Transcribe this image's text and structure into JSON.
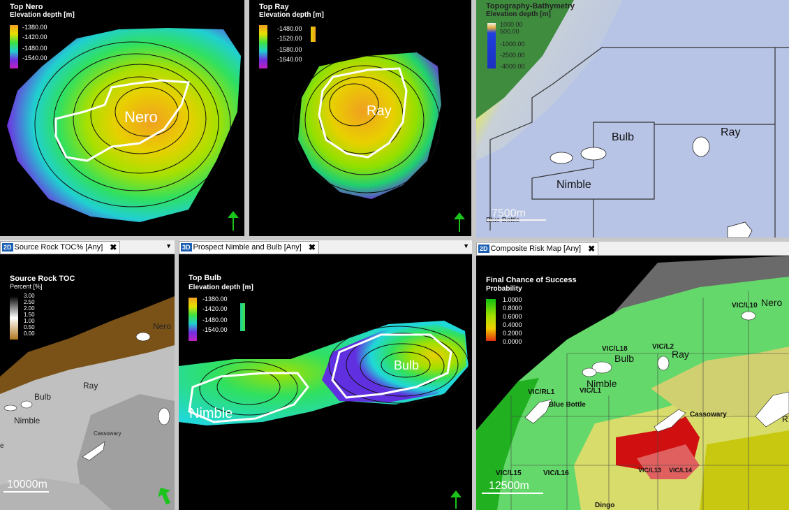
{
  "panels": {
    "nero": {
      "title": "Top Nero",
      "subtitle": "Elevation depth [m]",
      "legend": [
        "-1380.00",
        "-1420.00",
        "-1480.00",
        "-1540.00"
      ],
      "map_label": "Nero"
    },
    "ray": {
      "title": "Top Ray",
      "subtitle": "Elevation depth [m]",
      "legend": [
        "-1480.00",
        "-1520.00",
        "-1580.00",
        "-1640.00"
      ],
      "map_label": "Ray"
    },
    "topo": {
      "title": "Topography-Bathymetry",
      "subtitle": "Elevation depth [m]",
      "legend": [
        "1000.00",
        "500.00",
        "-1000.00",
        "-2500.00",
        "-4000.00"
      ],
      "labels": [
        "Bulb",
        "Ray",
        "Nimble",
        "Blue Bottle"
      ],
      "scale": "7500m"
    },
    "toc": {
      "tab_badge": "2D",
      "tab_title": "Source Rock TOC% [Any]",
      "title": "Source Rock TOC",
      "subtitle": "Percent [%]",
      "legend": [
        "3.00",
        "2.50",
        "2.00",
        "1.50",
        "1.00",
        "0.50",
        "0.00"
      ],
      "labels": [
        "Nero",
        "Ray",
        "Bulb",
        "Nimble",
        "Cassowary",
        "e"
      ],
      "scale": "10000m"
    },
    "prospect": {
      "tab_badge": "3D",
      "tab_title": "Prospect Nimble and Bulb [Any]",
      "title": "Top Bulb",
      "subtitle": "Elevation depth [m]",
      "legend": [
        "-1380.00",
        "-1420.00",
        "-1480.00",
        "-1540.00"
      ],
      "labels": [
        "Bulb",
        "Nimble"
      ]
    },
    "risk": {
      "tab_badge": "2D",
      "tab_title": "Composite Risk Map [Any]",
      "title": "Final Chance of Success",
      "subtitle": "Probability",
      "legend": [
        "1.0000",
        "0.8000",
        "0.6000",
        "0.4000",
        "0.2000",
        "0.0000"
      ],
      "labels": [
        "VIC/L10",
        "Nero",
        "VIC/L18",
        "VIC/L2",
        "Bulb",
        "Ray",
        "Nimble",
        "VIC/RL1",
        "VIC/L1",
        "Blue Bottle",
        "Cassowary",
        "R",
        "VIC/L13",
        "VIC/L14",
        "VIC/L15",
        "VIC/L16",
        "Dingo"
      ],
      "scale": "12500m"
    }
  },
  "close_glyph": "✖",
  "dropdown_glyph": "▼"
}
